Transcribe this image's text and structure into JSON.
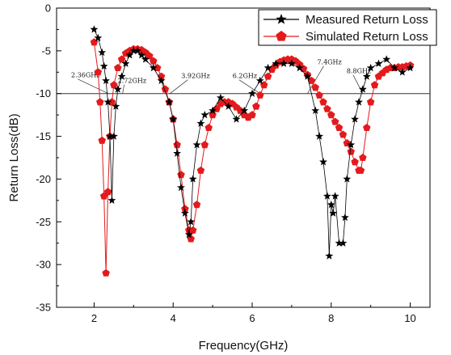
{
  "chart_data": {
    "type": "line",
    "xlabel": "Frequency(GHz)",
    "ylabel": "Return Loss(dB)",
    "xlim": [
      1.05,
      10.5
    ],
    "ylim": [
      -35,
      0
    ],
    "x_ticks": [
      2,
      4,
      6,
      8,
      10
    ],
    "y_ticks": [
      0,
      -5,
      -10,
      -15,
      -20,
      -25,
      -30,
      -35
    ],
    "grid": false,
    "legend_position": "top-right",
    "reference_line": {
      "y": -10
    },
    "series": [
      {
        "name": "Measured Return Loss",
        "marker": "star",
        "color": "#000000",
        "x": [
          2.0,
          2.1,
          2.2,
          2.25,
          2.3,
          2.35,
          2.4,
          2.45,
          2.5,
          2.55,
          2.6,
          2.7,
          2.8,
          2.9,
          3.0,
          3.1,
          3.2,
          3.3,
          3.5,
          3.7,
          3.9,
          4.0,
          4.1,
          4.2,
          4.3,
          4.4,
          4.45,
          4.5,
          4.6,
          4.7,
          4.8,
          5.0,
          5.2,
          5.4,
          5.6,
          5.8,
          6.0,
          6.2,
          6.4,
          6.6,
          6.8,
          7.0,
          7.2,
          7.4,
          7.6,
          7.7,
          7.8,
          7.9,
          7.95,
          8.0,
          8.05,
          8.1,
          8.2,
          8.3,
          8.35,
          8.4,
          8.5,
          8.6,
          8.7,
          8.8,
          8.9,
          9.0,
          9.2,
          9.4,
          9.6,
          9.8,
          10.0
        ],
        "y": [
          -2.5,
          -3.5,
          -5.2,
          -6.8,
          -8.5,
          -11.0,
          -15.0,
          -22.5,
          -15.0,
          -11.5,
          -9.5,
          -8.0,
          -6.5,
          -5.5,
          -5.0,
          -5.0,
          -5.5,
          -6.0,
          -7.0,
          -8.5,
          -11.0,
          -13.0,
          -17.0,
          -21.0,
          -24.0,
          -26.5,
          -25.0,
          -20.0,
          -16.0,
          -13.5,
          -12.5,
          -12.0,
          -10.5,
          -11.5,
          -13.0,
          -12.0,
          -10.0,
          -8.5,
          -7.0,
          -6.5,
          -6.5,
          -6.5,
          -7.0,
          -8.0,
          -12.0,
          -15.0,
          -18.0,
          -22.0,
          -29.0,
          -23.0,
          -24.0,
          -22.0,
          -27.5,
          -27.5,
          -24.5,
          -20.0,
          -16.0,
          -13.0,
          -11.0,
          -9.5,
          -8.0,
          -7.0,
          -6.5,
          -6.0,
          -7.0,
          -7.5,
          -7.0
        ]
      },
      {
        "name": "Simulated Return Loss",
        "marker": "pentagon",
        "color": "#e41a1c",
        "x": [
          2.0,
          2.1,
          2.15,
          2.2,
          2.25,
          2.3,
          2.35,
          2.4,
          2.45,
          2.5,
          2.6,
          2.7,
          2.8,
          2.9,
          3.0,
          3.1,
          3.2,
          3.3,
          3.4,
          3.5,
          3.6,
          3.7,
          3.8,
          3.9,
          4.0,
          4.1,
          4.2,
          4.3,
          4.4,
          4.45,
          4.5,
          4.6,
          4.7,
          4.8,
          4.9,
          5.0,
          5.1,
          5.2,
          5.3,
          5.4,
          5.5,
          5.6,
          5.7,
          5.8,
          5.9,
          6.0,
          6.1,
          6.2,
          6.3,
          6.4,
          6.5,
          6.6,
          6.7,
          6.8,
          6.9,
          7.0,
          7.1,
          7.2,
          7.3,
          7.4,
          7.5,
          7.6,
          7.7,
          7.8,
          7.9,
          8.0,
          8.1,
          8.2,
          8.3,
          8.4,
          8.5,
          8.6,
          8.7,
          8.75,
          8.8,
          8.9,
          9.0,
          9.1,
          9.2,
          9.3,
          9.4,
          9.5,
          9.6,
          9.7,
          9.8,
          9.9,
          10.0
        ],
        "y": [
          -4.0,
          -7.5,
          -11.0,
          -15.5,
          -22.0,
          -31.0,
          -21.5,
          -15.0,
          -11.0,
          -9.0,
          -7.0,
          -6.0,
          -5.3,
          -5.0,
          -4.8,
          -4.8,
          -4.9,
          -5.2,
          -5.6,
          -6.2,
          -7.0,
          -8.0,
          -9.5,
          -11.0,
          -13.0,
          -16.0,
          -19.5,
          -23.5,
          -26.0,
          -27.0,
          -26.0,
          -23.0,
          -19.0,
          -16.0,
          -14.0,
          -12.5,
          -11.8,
          -11.2,
          -11.0,
          -11.0,
          -11.2,
          -11.6,
          -12.0,
          -12.5,
          -12.8,
          -12.5,
          -11.5,
          -10.2,
          -9.0,
          -8.0,
          -7.2,
          -6.7,
          -6.3,
          -6.1,
          -6.0,
          -6.0,
          -6.2,
          -6.6,
          -7.1,
          -7.8,
          -8.5,
          -9.3,
          -10.2,
          -11.0,
          -11.8,
          -12.5,
          -13.3,
          -14.0,
          -14.8,
          -15.8,
          -16.8,
          -18.0,
          -19.0,
          -19.0,
          -17.5,
          -14.0,
          -11.0,
          -9.0,
          -8.0,
          -7.6,
          -7.2,
          -7.0,
          -7.0,
          -6.9,
          -6.9,
          -6.8,
          -6.7
        ]
      }
    ],
    "annotations": [
      {
        "text": "2.36GHz",
        "x": 2.36,
        "y": -10
      },
      {
        "text": "2.72GHz",
        "x": 2.72,
        "y": -10
      },
      {
        "text": "3.92GHz",
        "x": 3.92,
        "y": -10
      },
      {
        "text": "6.2GHz",
        "x": 6.2,
        "y": -10
      },
      {
        "text": "7.4GHz",
        "x": 7.4,
        "y": -10
      },
      {
        "text": "8.8GHz",
        "x": 8.8,
        "y": -10
      }
    ]
  }
}
